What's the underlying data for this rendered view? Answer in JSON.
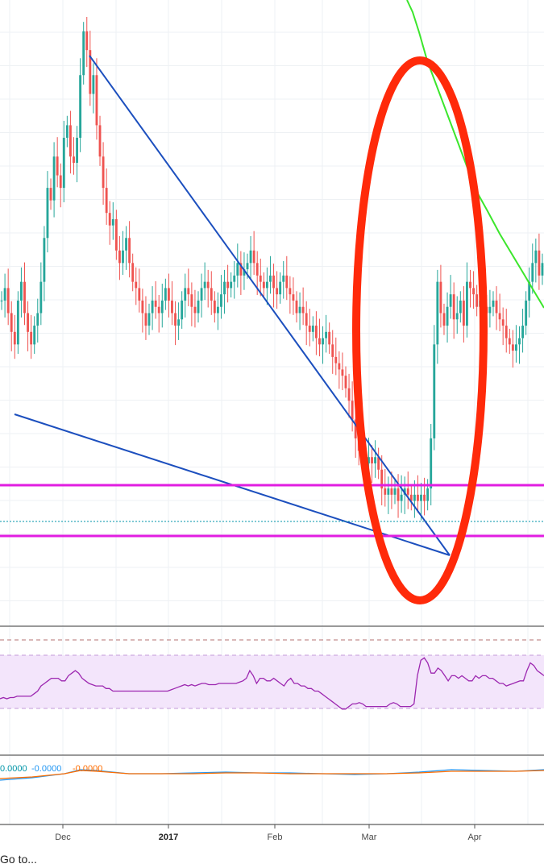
{
  "chart_data": [
    {
      "type": "candlestick",
      "title": "",
      "xlabel": "",
      "ylabel": "",
      "x_tick_labels": [
        {
          "label": "Dec",
          "bold": false
        },
        {
          "label": "2017",
          "bold": true
        },
        {
          "label": "Feb",
          "bold": false
        },
        {
          "label": "Mar",
          "bold": false
        },
        {
          "label": "Apr",
          "bold": false
        }
      ],
      "ylim": [
        0,
        100
      ],
      "grid": true,
      "up_color": "#26a69a",
      "down_color": "#ef5350",
      "closes": [
        52,
        54,
        50,
        47,
        45,
        52,
        55,
        50,
        47,
        45,
        48,
        50,
        55,
        62,
        70,
        68,
        75,
        72,
        70,
        78,
        80,
        75,
        74,
        78,
        88,
        95,
        92,
        85,
        88,
        80,
        75,
        70,
        66,
        64,
        65,
        60,
        58,
        60,
        62,
        58,
        55,
        54,
        52,
        50,
        48,
        50,
        52,
        51,
        50,
        52,
        54,
        52,
        50,
        48,
        49,
        52,
        54,
        53,
        51,
        50,
        52,
        54,
        55,
        54,
        52,
        50,
        51,
        53,
        55,
        54,
        55,
        56,
        58,
        56,
        57,
        58,
        60,
        58,
        56,
        55,
        54,
        55,
        56,
        54,
        53,
        55,
        56,
        54,
        53,
        52,
        50,
        51,
        50,
        48,
        47,
        48,
        46,
        45,
        46,
        47,
        45,
        43,
        42,
        41,
        40,
        38,
        36,
        33,
        30,
        28,
        27,
        26,
        27,
        26,
        27,
        25,
        22,
        21,
        22,
        21,
        22,
        20,
        21,
        22,
        21,
        20,
        21,
        20,
        21,
        20,
        22,
        30,
        45,
        55,
        50,
        48,
        51,
        53,
        49,
        50,
        52,
        48,
        55,
        54,
        53,
        51,
        52,
        51,
        50,
        51,
        52,
        50,
        49,
        48,
        46,
        45,
        44,
        45,
        46,
        48,
        52,
        55,
        58,
        60,
        56,
        58
      ]
    },
    {
      "type": "line",
      "title": "",
      "xlabel": "",
      "ylabel": "",
      "ylim": [
        0,
        100
      ],
      "band": [
        30,
        70
      ],
      "line_color": "#9c27b0",
      "values": [
        44,
        45,
        44,
        45,
        45,
        46,
        46,
        46,
        46,
        46,
        48,
        50,
        54,
        56,
        58,
        60,
        60,
        60,
        58,
        58,
        62,
        64,
        66,
        64,
        60,
        58,
        56,
        55,
        54,
        54,
        54,
        52,
        52,
        50,
        50,
        50,
        50,
        50,
        50,
        50,
        50,
        50,
        50,
        50,
        50,
        50,
        50,
        50,
        50,
        50,
        51,
        52,
        53,
        54,
        55,
        54,
        55,
        54,
        55,
        56,
        56,
        55,
        55,
        55,
        56,
        56,
        56,
        56,
        56,
        56,
        57,
        58,
        60,
        66,
        62,
        56,
        60,
        60,
        58,
        58,
        60,
        58,
        56,
        54,
        58,
        60,
        56,
        56,
        54,
        54,
        52,
        52,
        50,
        50,
        48,
        46,
        44,
        42,
        40,
        38,
        36,
        36,
        38,
        40,
        40,
        41,
        40,
        38,
        38,
        38,
        38,
        38,
        38,
        38,
        40,
        41,
        40,
        38,
        38,
        38,
        38,
        40,
        62,
        74,
        76,
        72,
        64,
        64,
        68,
        66,
        62,
        58,
        62,
        62,
        60,
        62,
        60,
        58,
        58,
        62,
        60,
        62,
        62,
        60,
        60,
        58,
        56,
        56,
        54,
        55,
        56,
        57,
        58,
        58,
        66,
        72,
        70,
        66,
        64,
        62
      ]
    },
    {
      "type": "line",
      "title": "",
      "xlabel": "",
      "ylabel": "",
      "value_labels": [
        "0.0000",
        "-0.0000",
        "-0.0000"
      ],
      "value_colors": [
        "#0095a8",
        "#2196f3",
        "#ff6d00"
      ],
      "series": [
        {
          "color": "#2196f3"
        },
        {
          "color": "#ff6d00"
        }
      ]
    }
  ],
  "footer": {
    "goto_label": "Go to..."
  }
}
